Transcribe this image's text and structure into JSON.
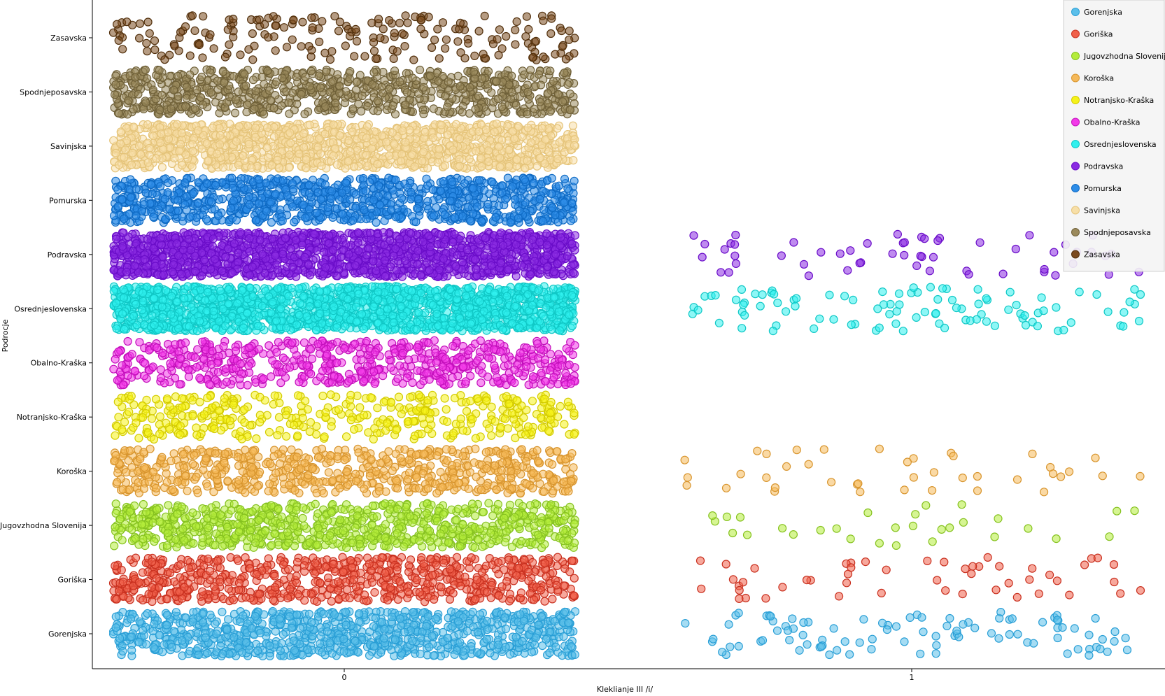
{
  "chart_data": {
    "type": "scatter",
    "title": "",
    "xlabel": "Kleklianje III /i/",
    "ylabel": "Podrocje",
    "x_ticks": [
      0,
      1
    ],
    "xlim": [
      -0.44,
      1.44
    ],
    "grid": false,
    "jitter": true,
    "legend_position": "top-right",
    "categories": [
      "Gorenjska",
      "Goriška",
      "Jugovzhodna Slovenija",
      "Koroška",
      "Notranjsko-Kraška",
      "Obalno-Kraška",
      "Osrednjeslovenska",
      "Podravska",
      "Pomurska",
      "Savinjska",
      "Spodnjeposavska",
      "Zasavska"
    ],
    "series": [
      {
        "name": "Gorenjska",
        "color": "#5bbfea",
        "edge": "#2a9fd6",
        "counts": {
          "0": 900,
          "1": 95
        }
      },
      {
        "name": "Goriška",
        "color": "#f0604a",
        "edge": "#c9301f",
        "counts": {
          "0": 700,
          "1": 50
        }
      },
      {
        "name": "Jugovzhodna Slovenija",
        "color": "#b4ec3a",
        "edge": "#86c220",
        "counts": {
          "0": 800,
          "1": 30
        }
      },
      {
        "name": "Koroška",
        "color": "#f5b95a",
        "edge": "#d8952e",
        "counts": {
          "0": 650,
          "1": 40
        }
      },
      {
        "name": "Notranjsko-Kraška",
        "color": "#f5f21a",
        "edge": "#d4cc00",
        "counts": {
          "0": 400,
          "1": 0
        }
      },
      {
        "name": "Obalno-Kraška",
        "color": "#f23ae8",
        "edge": "#c410bc",
        "counts": {
          "0": 600,
          "1": 0
        }
      },
      {
        "name": "Osrednjeslovenska",
        "color": "#30f0ee",
        "edge": "#10c8c6",
        "counts": {
          "0": 1800,
          "1": 100
        }
      },
      {
        "name": "Podravska",
        "color": "#8a2be2",
        "edge": "#6a0dc9",
        "counts": {
          "0": 1600,
          "1": 55
        }
      },
      {
        "name": "Pomurska",
        "color": "#2d8de8",
        "edge": "#0e6ac4",
        "counts": {
          "0": 1000,
          "1": 0
        }
      },
      {
        "name": "Savinjska",
        "color": "#f7dfa8",
        "edge": "#e5c47a",
        "counts": {
          "0": 1300,
          "1": 0
        }
      },
      {
        "name": "Spodnjeposavska",
        "color": "#9b8a5c",
        "edge": "#6f6038",
        "counts": {
          "0": 800,
          "1": 0
        }
      },
      {
        "name": "Zasavska",
        "color": "#7a4a1e",
        "edge": "#52300c",
        "counts": {
          "0": 200,
          "1": 0
        }
      }
    ]
  }
}
